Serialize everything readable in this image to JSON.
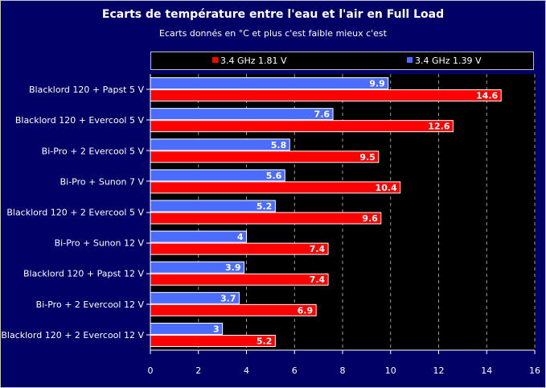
{
  "chart_data": {
    "type": "bar",
    "orientation": "horizontal",
    "title": "Ecarts de température entre l'eau et l'air en Full Load",
    "subtitle": "Ecarts donnés en °C et plus c'est faible mieux c'est",
    "categories": [
      "Blacklord 120 + Papst 5 V",
      "Blacklord 120 + Evercool 5 V",
      "Bi-Pro + 2 Evercool 5 V",
      "Bi-Pro + Sunon 7 V",
      "Blacklord 120 + 2 Evercool 5 V",
      "Bi-Pro + Sunon 12 V",
      "Blacklord 120 + Papst 12 V",
      "Bi-Pro + 2 Evercool 12 V",
      "Blacklord 120 + 2 Evercool 12 V"
    ],
    "series": [
      {
        "name": "3.4 GHz 1.39 V",
        "color": "#4a6cff",
        "values": [
          9.9,
          7.6,
          5.8,
          5.6,
          5.2,
          4,
          3.9,
          3.7,
          3
        ]
      },
      {
        "name": "3.4 GHz 1.81 V",
        "color": "#ff0000",
        "values": [
          14.6,
          12.6,
          9.5,
          10.4,
          9.6,
          7.4,
          7.4,
          6.9,
          5.2
        ]
      }
    ],
    "legend_order": [
      "3.4 GHz 1.81 V",
      "3.4 GHz 1.39 V"
    ],
    "xlim": [
      0,
      16
    ],
    "xticks": [
      0,
      2,
      4,
      6,
      8,
      10,
      12,
      14,
      16
    ],
    "grid": true,
    "legend_position": "top"
  }
}
